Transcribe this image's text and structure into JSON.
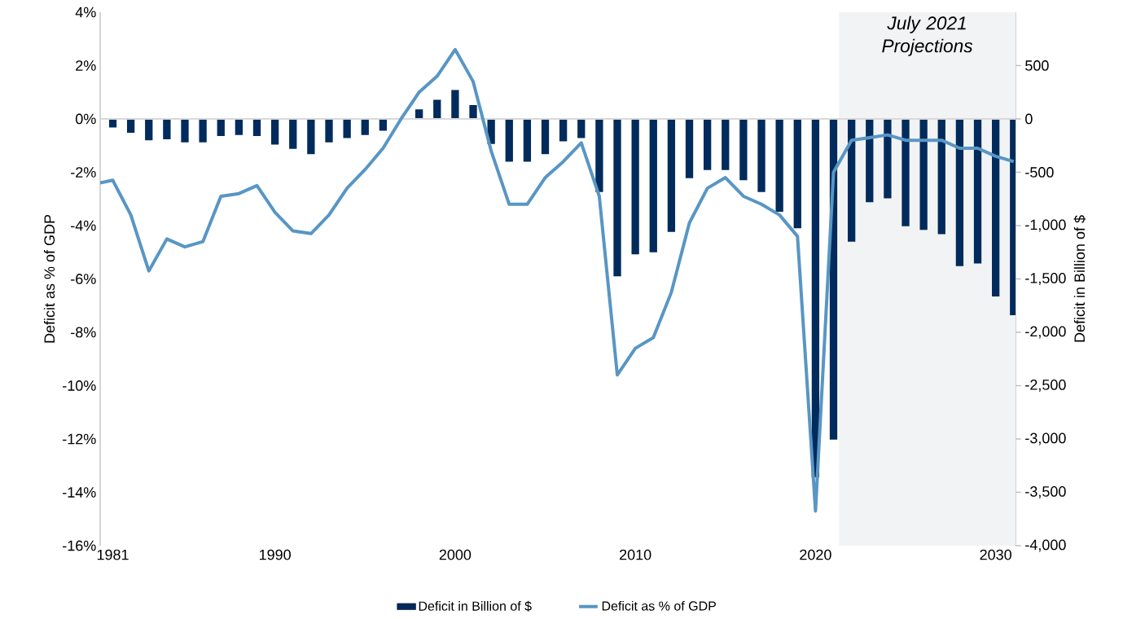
{
  "chart_data": {
    "type": "bar",
    "ylabel": "Deficit as % of GDP",
    "y2label": "Deficit in Billion of $",
    "x": [
      1981,
      1982,
      1983,
      1984,
      1985,
      1986,
      1987,
      1988,
      1989,
      1990,
      1991,
      1992,
      1993,
      1994,
      1995,
      1996,
      1997,
      1998,
      1999,
      2000,
      2001,
      2002,
      2003,
      2004,
      2005,
      2006,
      2007,
      2008,
      2009,
      2010,
      2011,
      2012,
      2013,
      2014,
      2015,
      2016,
      2017,
      2018,
      2019,
      2020,
      2021,
      2022,
      2023,
      2024,
      2025,
      2026,
      2027,
      2028,
      2029,
      2030,
      2031
    ],
    "xlim": [
      1980.3,
      2031.1
    ],
    "xticks": [
      1981,
      1990,
      2000,
      2010,
      2020,
      2030
    ],
    "ylim": [
      -16,
      4
    ],
    "yticks": [
      {
        "value": -16,
        "label": "-16%"
      },
      {
        "value": -14,
        "label": "-14%"
      },
      {
        "value": -12,
        "label": "-12%"
      },
      {
        "value": -10,
        "label": "-10%"
      },
      {
        "value": -8,
        "label": "-8%"
      },
      {
        "value": -6,
        "label": "-6%"
      },
      {
        "value": -4,
        "label": "-4%"
      },
      {
        "value": -2,
        "label": "-2%"
      },
      {
        "value": 0,
        "label": "0%"
      },
      {
        "value": 2,
        "label": "2%"
      },
      {
        "value": 4,
        "label": "4%"
      }
    ],
    "y2lim": [
      -4000,
      1000
    ],
    "y2ticks": [
      {
        "value": -4000,
        "label": "-4,000"
      },
      {
        "value": -3500,
        "label": "-3,500"
      },
      {
        "value": -3000,
        "label": "-3,000"
      },
      {
        "value": -2500,
        "label": "-2,500"
      },
      {
        "value": -2000,
        "label": "-2,000"
      },
      {
        "value": -1500,
        "label": "-1,500"
      },
      {
        "value": -1000,
        "label": "-1,000"
      },
      -500,
      0,
      500
    ],
    "series": [
      {
        "name": "Deficit in Billion of $",
        "axis": "y2",
        "color": "#002b5c",
        "values": [
          -80,
          -130,
          -200,
          -190,
          -220,
          -220,
          -160,
          -150,
          -160,
          -240,
          -280,
          -330,
          -220,
          -180,
          -150,
          -110,
          null,
          90,
          180,
          270,
          130,
          -235,
          -400,
          -400,
          -330,
          -210,
          -180,
          -685,
          -1475,
          -1270,
          -1250,
          -1060,
          -555,
          -480,
          -480,
          -575,
          -685,
          -870,
          -1025,
          -3360,
          -3005,
          -1150,
          -780,
          -745,
          -1005,
          -1040,
          -1080,
          -1380,
          -1355,
          -1665,
          -1840
        ]
      },
      {
        "name": "Deficit as % of GDP",
        "type": "line",
        "color": "#5896c4",
        "x": [
          1980.3,
          1981,
          1982,
          1983,
          1984,
          1985,
          1986,
          1987,
          1988,
          1989,
          1990,
          1991,
          1992,
          1993,
          1994,
          1995,
          1996,
          1997,
          1998,
          1999,
          2000,
          2001,
          2002,
          2003,
          2004,
          2005,
          2006,
          2007,
          2008,
          2009,
          2010,
          2011,
          2012,
          2013,
          2014,
          2015,
          2016,
          2017,
          2018,
          2019,
          2020,
          2021,
          2022,
          2023,
          2024,
          2025,
          2026,
          2027,
          2028,
          2029,
          2030,
          2031
        ],
        "values": [
          -2.4,
          -2.3,
          -3.6,
          -5.7,
          -4.5,
          -4.8,
          -4.6,
          -2.9,
          -2.8,
          -2.5,
          -3.5,
          -4.2,
          -4.3,
          -3.6,
          -2.6,
          -1.9,
          -1.1,
          0.0,
          1.0,
          1.6,
          2.6,
          1.4,
          -1.2,
          -3.2,
          -3.2,
          -2.2,
          -1.6,
          -0.9,
          -2.9,
          -9.6,
          -8.6,
          -8.2,
          -6.5,
          -3.9,
          -2.6,
          -2.2,
          -2.9,
          -3.2,
          -3.6,
          -4.4,
          -14.7,
          -2.0,
          -0.8,
          -0.7,
          -0.6,
          -0.8,
          -0.8,
          -0.8,
          -1.1,
          -1.1,
          -1.4,
          -1.6
        ]
      }
    ],
    "bands": [
      {
        "axis": "x",
        "from": 2021.3,
        "to": 2031.1,
        "label": "July 2021 Projections",
        "color": "#f2f3f5"
      }
    ],
    "ref_lines": [
      {
        "axis": "y",
        "value": 0,
        "color": "#d9d9d9"
      }
    ],
    "legend": "bottom",
    "grid": false
  }
}
